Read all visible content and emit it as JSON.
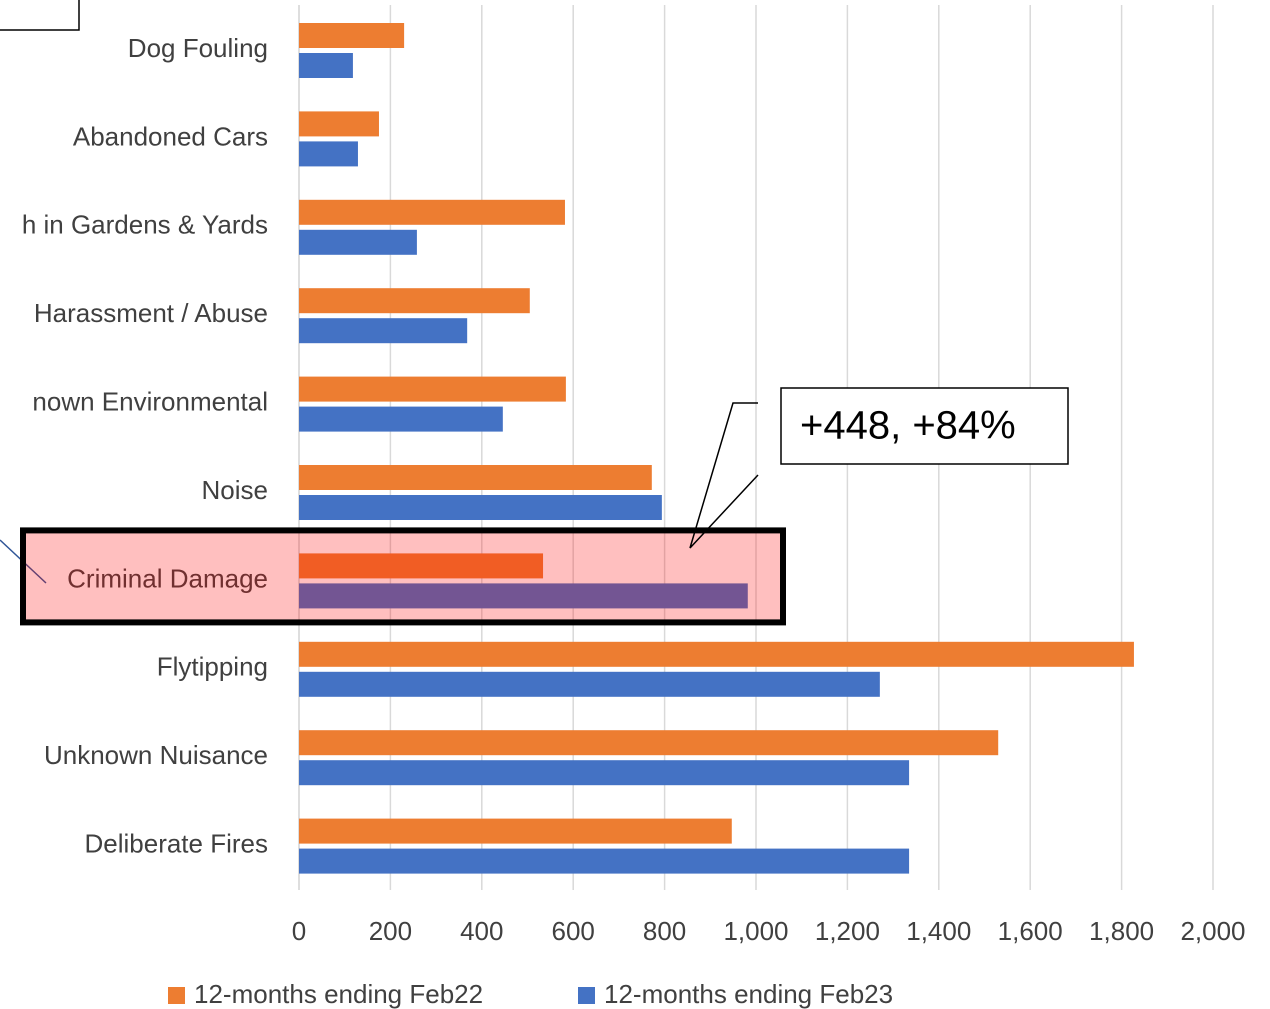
{
  "chart_data": {
    "type": "bar",
    "orientation": "horizontal",
    "categories": [
      "Dog Fouling",
      "Abandoned Cars",
      "h in Gardens & Yards",
      "Harassment / Abuse",
      "nown Environmental",
      "Noise",
      "Criminal Damage",
      "Flytipping",
      "Unknown Nuisance",
      "Deliberate Fires"
    ],
    "series": [
      {
        "name": "12-months ending Feb22",
        "color": "#ed7d31",
        "values": [
          230,
          175,
          582,
          505,
          584,
          772,
          534,
          1827,
          1530,
          947
        ]
      },
      {
        "name": "12-months ending Feb23",
        "color": "#4472c4",
        "values": [
          118,
          129,
          258,
          368,
          446,
          794,
          982,
          1271,
          1335,
          1335
        ]
      }
    ],
    "xlim": [
      0,
      2000
    ],
    "xticks": [
      0,
      200,
      400,
      600,
      800,
      {
        "value": 1000,
        "label": "1,000"
      },
      {
        "value": 1200,
        "label": "1,200"
      },
      {
        "value": 1400,
        "label": "1,400"
      },
      {
        "value": 1600,
        "label": "1,600"
      },
      {
        "value": 1800,
        "label": "1,800"
      },
      {
        "value": 2000,
        "label": "2,000"
      }
    ],
    "grid": true,
    "legend": "bottom",
    "highlight": "Criminal Damage",
    "annotation": "+448, +84%"
  }
}
